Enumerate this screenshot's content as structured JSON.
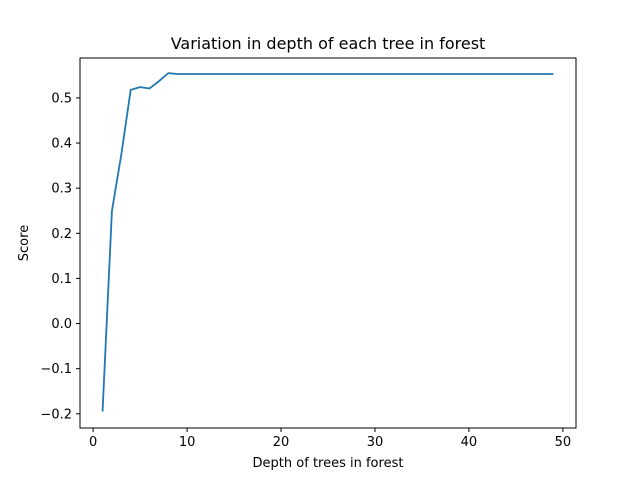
{
  "chart_data": {
    "type": "line",
    "title": "Variation in depth of each tree in forest",
    "xlabel": "Depth of trees in forest",
    "ylabel": "Score",
    "xlim": [
      -1.4,
      51.4
    ],
    "ylim": [
      -0.2315,
      0.5885
    ],
    "x_ticks": [
      0,
      10,
      20,
      30,
      40,
      50
    ],
    "x_tick_labels": [
      "0",
      "10",
      "20",
      "30",
      "40",
      "50"
    ],
    "y_ticks": [
      -0.2,
      -0.1,
      0.0,
      0.1,
      0.2,
      0.3,
      0.4,
      0.5
    ],
    "y_tick_labels": [
      "−0.2",
      "−0.1",
      "0.0",
      "0.1",
      "0.2",
      "0.3",
      "0.4",
      "0.5"
    ],
    "grid": false,
    "line_color": "#1f77b4",
    "series": [
      {
        "x": [
          1,
          2,
          3,
          4,
          5,
          6,
          7,
          8,
          9,
          10,
          11,
          12,
          13,
          14,
          15,
          16,
          17,
          18,
          19,
          20,
          21,
          22,
          23,
          24,
          25,
          26,
          27,
          28,
          29,
          30,
          31,
          32,
          33,
          34,
          35,
          36,
          37,
          38,
          39,
          40,
          41,
          42,
          43,
          44,
          45,
          46,
          47,
          48,
          49
        ],
        "y": [
          -0.195,
          0.25,
          0.375,
          0.518,
          0.524,
          0.521,
          0.537,
          0.555,
          0.553,
          0.553,
          0.553,
          0.553,
          0.553,
          0.553,
          0.553,
          0.553,
          0.553,
          0.553,
          0.553,
          0.553,
          0.553,
          0.553,
          0.553,
          0.553,
          0.553,
          0.553,
          0.553,
          0.553,
          0.553,
          0.553,
          0.553,
          0.553,
          0.553,
          0.553,
          0.553,
          0.553,
          0.553,
          0.553,
          0.553,
          0.553,
          0.553,
          0.553,
          0.553,
          0.553,
          0.553,
          0.553,
          0.553,
          0.553,
          0.553
        ]
      }
    ]
  }
}
